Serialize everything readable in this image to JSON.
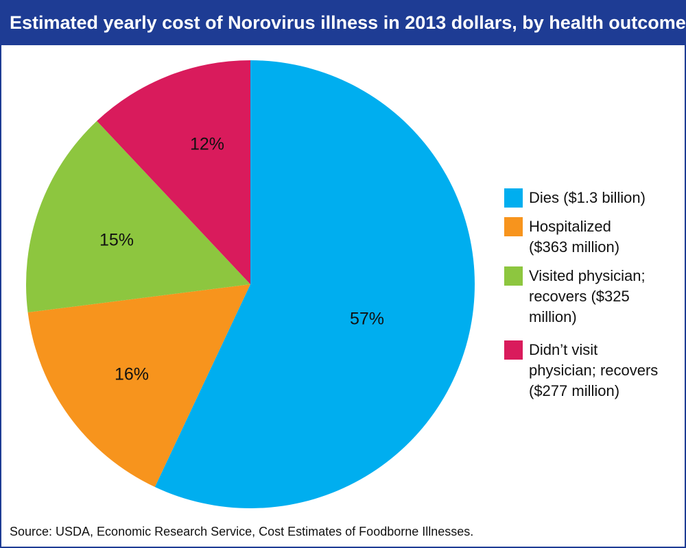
{
  "chart_data": {
    "type": "pie",
    "title": "Estimated yearly cost of Norovirus illness in 2013 dollars, by health outcome",
    "slices": [
      {
        "legend": "Dies ($1.3 billion)",
        "value": 57,
        "label": "57%",
        "color": "#00aeef"
      },
      {
        "legend": "Hospitalized ($363 million)",
        "value": 16,
        "label": "16%",
        "color": "#f7941d"
      },
      {
        "legend": "Visited physician; recovers ($325 million)",
        "value": 15,
        "label": "15%",
        "color": "#8dc63f"
      },
      {
        "legend": "Didn’t visit physician; recovers ($277 million)",
        "value": 12,
        "label": "12%",
        "color": "#d91b5c"
      }
    ],
    "start_angle": "12 o'clock",
    "direction": "clockwise",
    "legend_position": "right"
  },
  "source": "Source: USDA, Economic Research Service, Cost Estimates of Foodborne Illnesses."
}
